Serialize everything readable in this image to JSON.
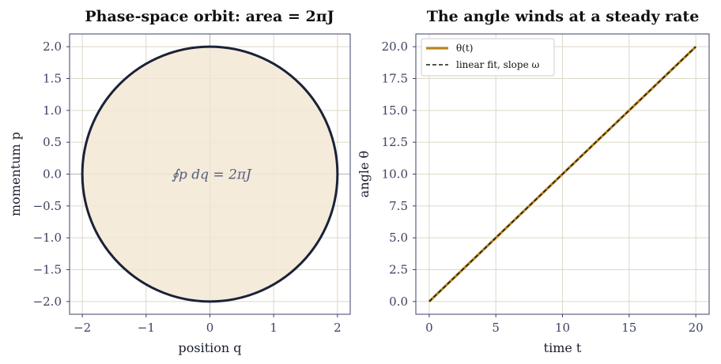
{
  "chart_data": [
    {
      "type": "area",
      "title": "Phase-space orbit: area = 2πJ",
      "xlabel": "position  q",
      "ylabel": "momentum  p",
      "xlim": [
        -2.2,
        2.2
      ],
      "ylim": [
        -2.2,
        2.2
      ],
      "xticks": [
        -2,
        -1,
        0,
        1,
        2
      ],
      "xtick_labels": [
        "−2",
        "−1",
        "0",
        "1",
        "2"
      ],
      "yticks": [
        -2.0,
        -1.5,
        -1.0,
        -0.5,
        0.0,
        0.5,
        1.0,
        1.5,
        2.0
      ],
      "ytick_labels": [
        "−2.0",
        "−1.5",
        "−1.0",
        "−0.5",
        "0.0",
        "0.5",
        "1.0",
        "1.5",
        "2.0"
      ],
      "grid": true,
      "circle": {
        "center": [
          0,
          0
        ],
        "radius": 2
      },
      "annotation": "∮p dq = 2πJ",
      "colors": {
        "fill": "#f3e7d4",
        "edge": "#1a2238",
        "axis_lines": "#bfbfbf"
      }
    },
    {
      "type": "line",
      "title": "The angle winds at a steady rate",
      "xlabel": "time  t",
      "ylabel": "angle  θ",
      "xlim": [
        -1,
        21
      ],
      "ylim": [
        -1,
        21
      ],
      "xticks": [
        0,
        5,
        10,
        15,
        20
      ],
      "xtick_labels": [
        "0",
        "5",
        "10",
        "15",
        "20"
      ],
      "yticks": [
        0.0,
        2.5,
        5.0,
        7.5,
        10.0,
        12.5,
        15.0,
        17.5,
        20.0
      ],
      "ytick_labels": [
        "0.0",
        "2.5",
        "5.0",
        "7.5",
        "10.0",
        "12.5",
        "15.0",
        "17.5",
        "20.0"
      ],
      "grid": true,
      "legend_position": "top-left",
      "series": [
        {
          "name": "θ(t)",
          "x": [
            0,
            20
          ],
          "y": [
            0,
            20
          ],
          "color": "#b8861e",
          "style": "solid"
        },
        {
          "name": "linear fit, slope ω",
          "x": [
            0,
            20
          ],
          "y": [
            0,
            20
          ],
          "color": "#1a1a1a",
          "style": "dashed"
        }
      ]
    }
  ]
}
